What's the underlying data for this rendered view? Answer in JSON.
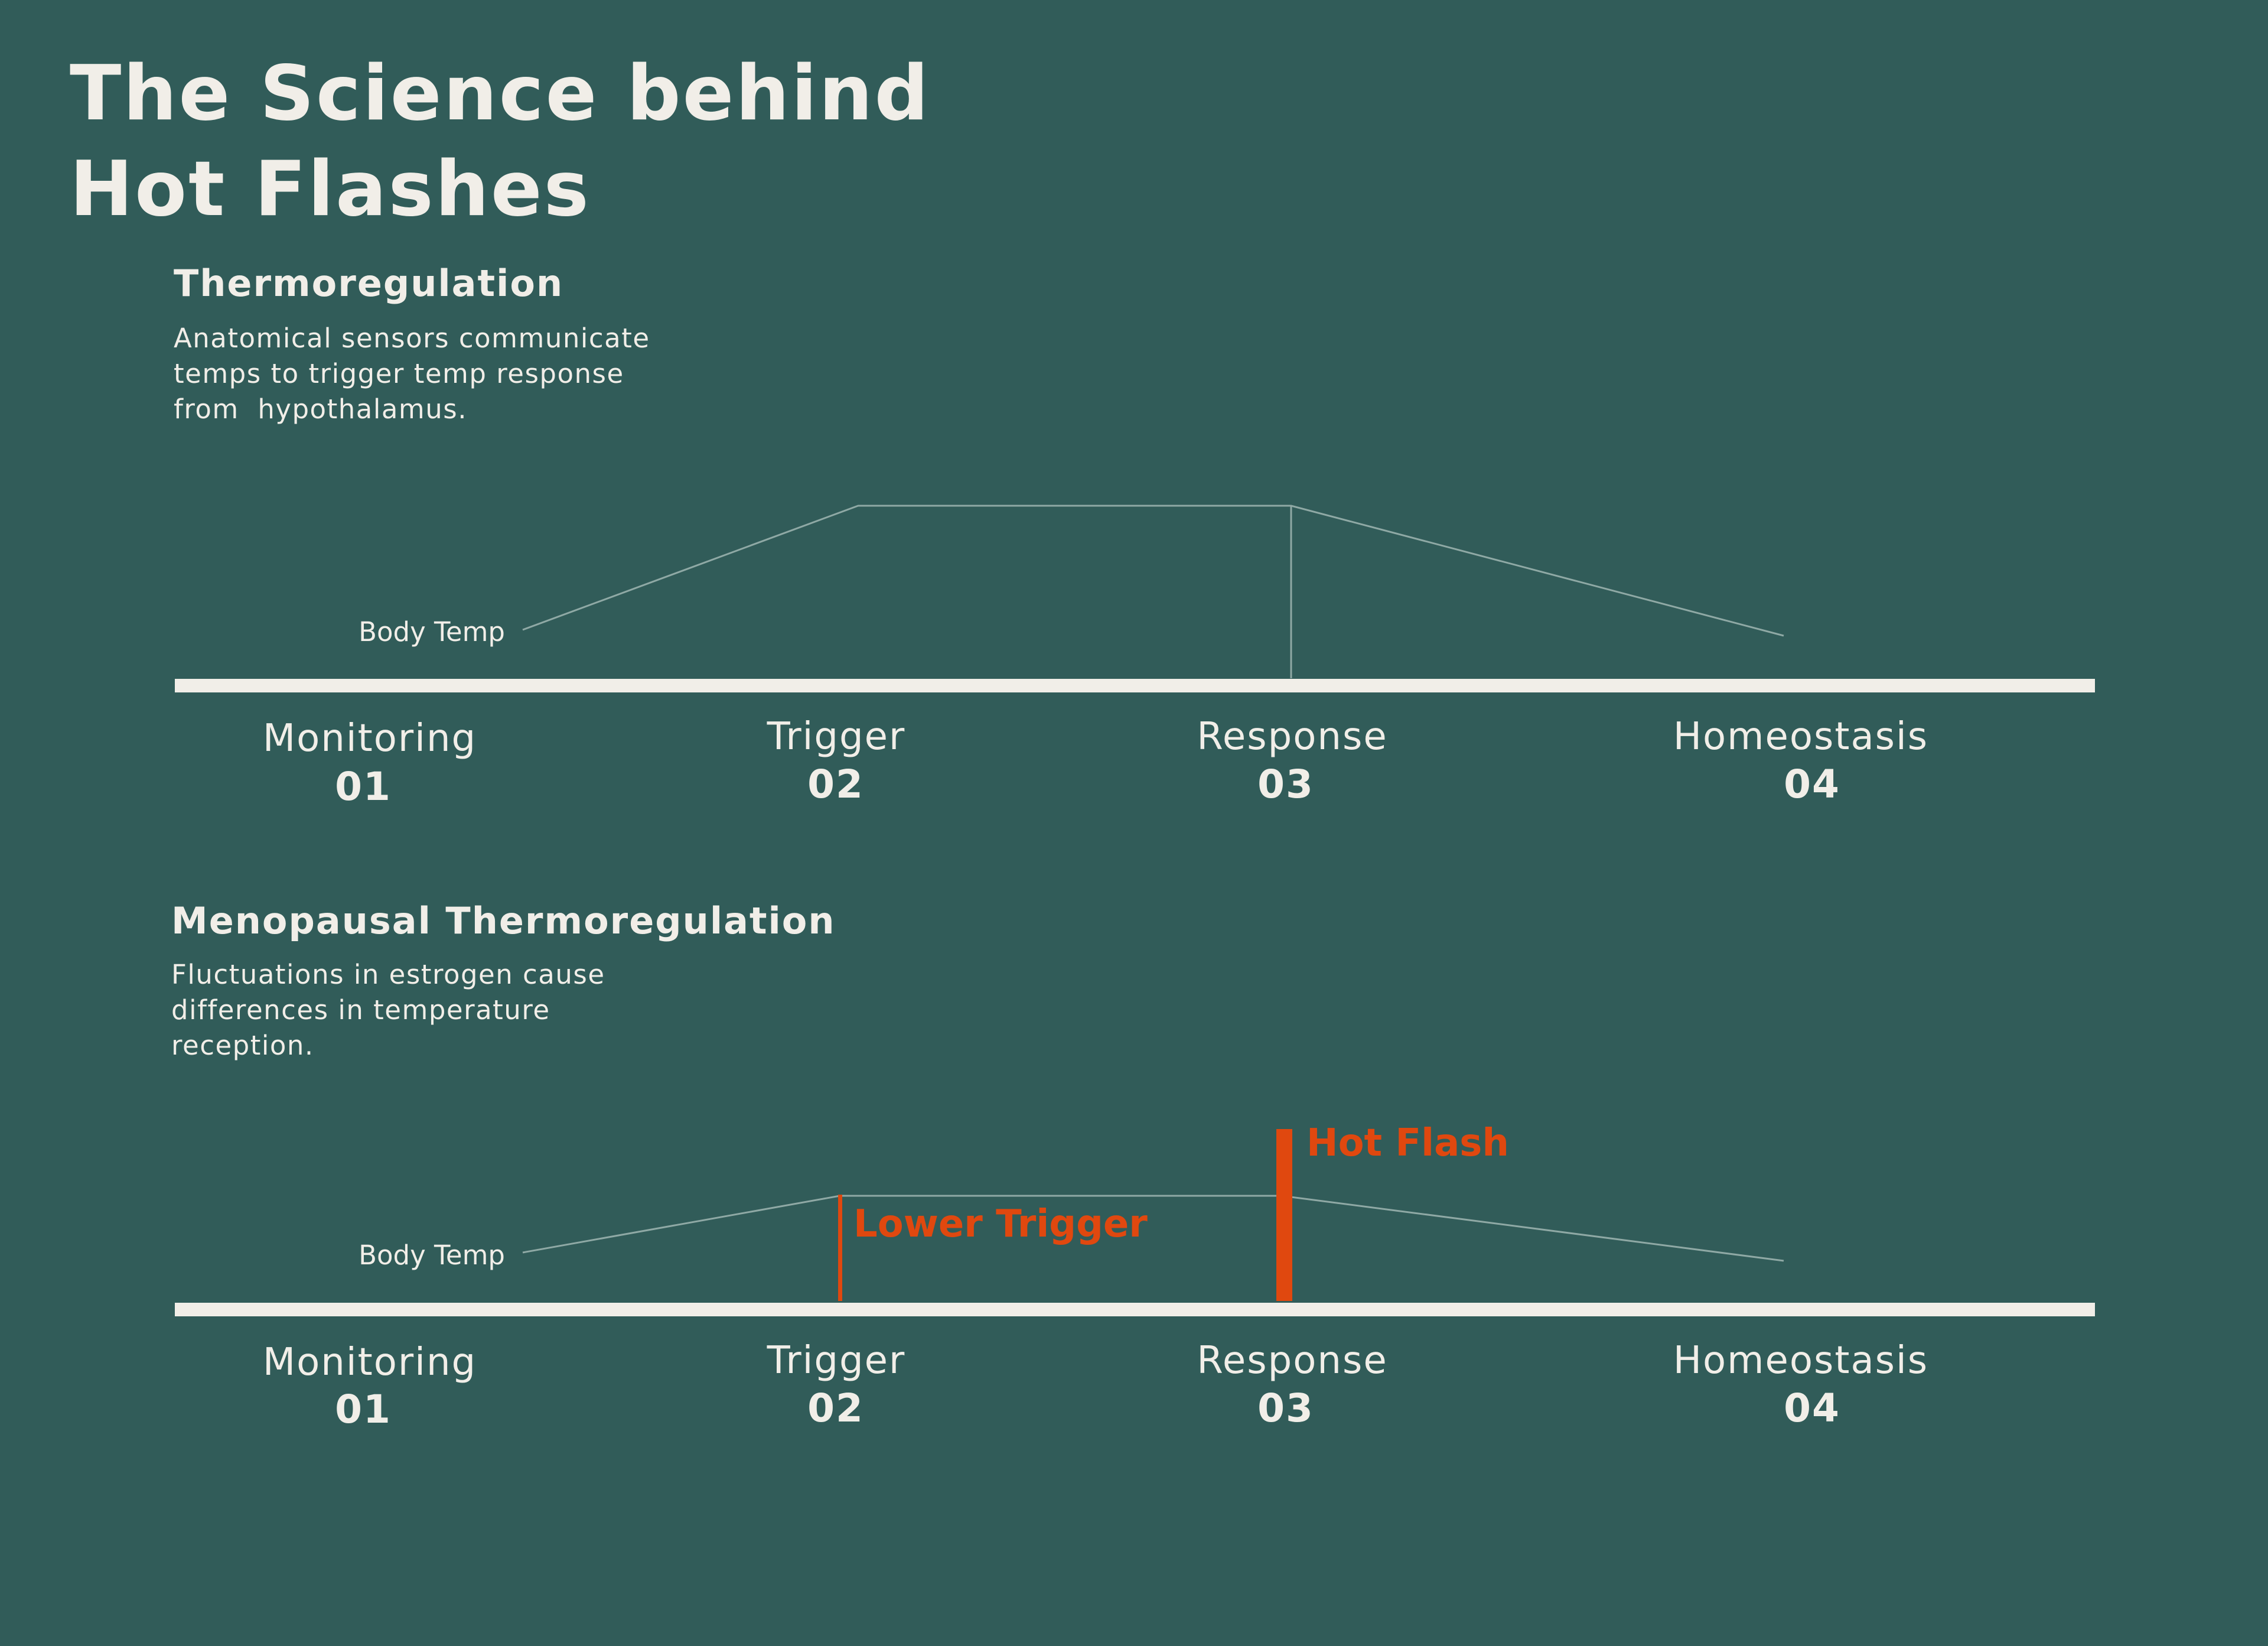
{
  "title": {
    "line1": "The Science behind",
    "line2": "Hot Flashes"
  },
  "colors": {
    "background": "#315c59",
    "text": "#f1eee8",
    "accent": "#e0480f",
    "curve": "#8fa9a5"
  },
  "normal": {
    "heading": "Thermoregulation",
    "description_lines": [
      "Anatomical sensors communicate",
      "temps to trigger temp response",
      "from  hypothalamus."
    ],
    "axis_label": "Body Temp",
    "stages": [
      {
        "label": "Monitoring",
        "number": "01"
      },
      {
        "label": "Trigger",
        "number": "02"
      },
      {
        "label": "Response",
        "number": "03"
      },
      {
        "label": "Homeostasis",
        "number": "04"
      }
    ]
  },
  "menopausal": {
    "heading": "Menopausal Thermoregulation",
    "description_lines": [
      "Fluctuations in estrogen cause",
      "differences in temperature",
      "reception."
    ],
    "axis_label": "Body Temp",
    "lower_trigger_label": "Lower Trigger",
    "hot_flash_label": "Hot Flash",
    "stages": [
      {
        "label": "Monitoring",
        "number": "01"
      },
      {
        "label": "Trigger",
        "number": "02"
      },
      {
        "label": "Response",
        "number": "03"
      },
      {
        "label": "Homeostasis",
        "number": "04"
      }
    ]
  }
}
